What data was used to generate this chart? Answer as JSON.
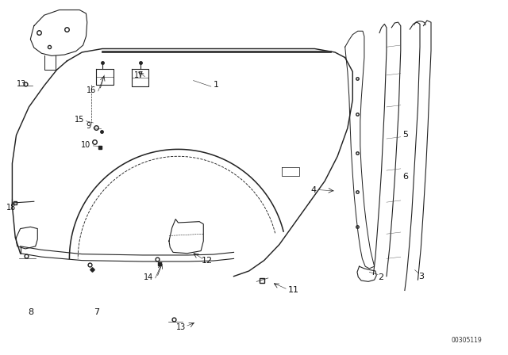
{
  "title": "",
  "bg_color": "#ffffff",
  "fig_width": 6.4,
  "fig_height": 4.48,
  "dpi": 100,
  "diagram_code": "00305119",
  "line_color": "#222222",
  "label_fontsize": 7,
  "line_width": 0.8
}
